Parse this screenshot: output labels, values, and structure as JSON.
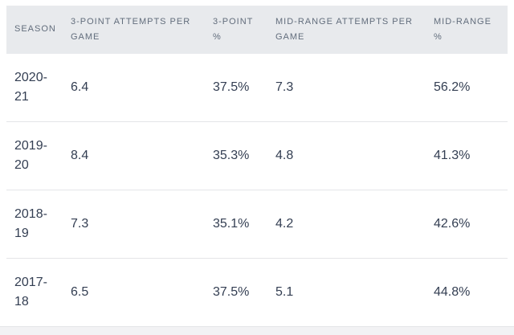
{
  "chart_data": {
    "type": "table",
    "columns": [
      "SEASON",
      "3-POINT ATTEMPTS PER GAME",
      "3-POINT %",
      "MID-RANGE ATTEMPTS PER GAME",
      "MID-RANGE %"
    ],
    "rows": [
      [
        "2020-21",
        "6.4",
        "37.5%",
        "7.3",
        "56.2%"
      ],
      [
        "2019-20",
        "8.4",
        "35.3%",
        "4.8",
        "41.3%"
      ],
      [
        "2018-19",
        "7.3",
        "35.1%",
        "4.2",
        "42.6%"
      ],
      [
        "2017-18",
        "6.5",
        "37.5%",
        "5.1",
        "44.8%"
      ]
    ]
  },
  "colors": {
    "page_bg": "#ffffff",
    "header_bg": "#e8eaed",
    "header_text": "#626d7c",
    "body_text": "#333e52",
    "row_border": "#e4e5e8",
    "footer_strip": "#f2f2f4"
  }
}
